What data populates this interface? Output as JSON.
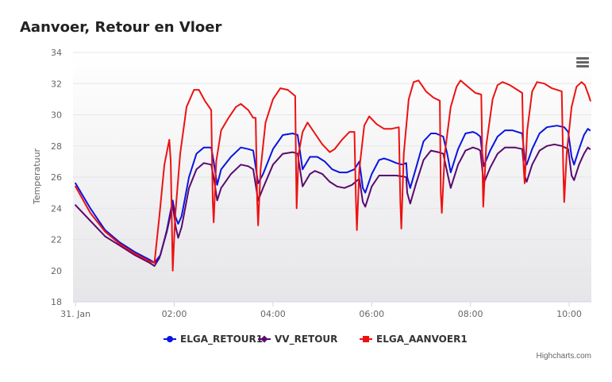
{
  "chart_data": {
    "type": "line",
    "title": "Aanvoer, Retour en Vloer",
    "ylabel": "Temperatuur",
    "xlabel": "",
    "ylim": [
      18,
      34
    ],
    "yticks": [
      18,
      20,
      22,
      24,
      26,
      28,
      30,
      32,
      34
    ],
    "xlim": [
      -0.05,
      10.45
    ],
    "xticks": [
      {
        "value": 0,
        "label": "31. Jan"
      },
      {
        "value": 2,
        "label": "02:00"
      },
      {
        "value": 4,
        "label": "04:00"
      },
      {
        "value": 6,
        "label": "06:00"
      },
      {
        "value": 8,
        "label": "08:00"
      },
      {
        "value": 10,
        "label": "10:00"
      }
    ],
    "grid": true,
    "legend_position": "bottom-center",
    "series": [
      {
        "name": "ELGA_RETOUR1",
        "color": "#0a14e0",
        "marker": "circle",
        "points": [
          [
            0,
            25.6
          ],
          [
            0.3,
            24.0
          ],
          [
            0.6,
            22.6
          ],
          [
            0.9,
            21.8
          ],
          [
            1.2,
            21.2
          ],
          [
            1.5,
            20.7
          ],
          [
            1.6,
            20.5
          ],
          [
            1.72,
            21.0
          ],
          [
            1.85,
            22.6
          ],
          [
            1.97,
            24.5
          ],
          [
            2.03,
            23.4
          ],
          [
            2.08,
            23.0
          ],
          [
            2.15,
            23.5
          ],
          [
            2.3,
            26.0
          ],
          [
            2.45,
            27.5
          ],
          [
            2.6,
            27.9
          ],
          [
            2.75,
            27.9
          ],
          [
            2.8,
            27.0
          ],
          [
            2.87,
            25.5
          ],
          [
            2.95,
            26.5
          ],
          [
            3.15,
            27.3
          ],
          [
            3.35,
            27.9
          ],
          [
            3.5,
            27.8
          ],
          [
            3.6,
            27.7
          ],
          [
            3.7,
            25.6
          ],
          [
            3.8,
            26.2
          ],
          [
            4.0,
            27.8
          ],
          [
            4.2,
            28.7
          ],
          [
            4.4,
            28.8
          ],
          [
            4.5,
            28.7
          ],
          [
            4.6,
            26.5
          ],
          [
            4.75,
            27.3
          ],
          [
            4.9,
            27.3
          ],
          [
            5.05,
            27.0
          ],
          [
            5.2,
            26.5
          ],
          [
            5.35,
            26.3
          ],
          [
            5.5,
            26.3
          ],
          [
            5.65,
            26.5
          ],
          [
            5.75,
            27.0
          ],
          [
            5.82,
            25.3
          ],
          [
            5.87,
            25.0
          ],
          [
            6.0,
            26.2
          ],
          [
            6.15,
            27.1
          ],
          [
            6.25,
            27.2
          ],
          [
            6.35,
            27.1
          ],
          [
            6.5,
            26.9
          ],
          [
            6.62,
            26.8
          ],
          [
            6.7,
            26.9
          ],
          [
            6.72,
            26.0
          ],
          [
            6.78,
            25.3
          ],
          [
            6.9,
            26.6
          ],
          [
            7.05,
            28.3
          ],
          [
            7.2,
            28.8
          ],
          [
            7.3,
            28.8
          ],
          [
            7.45,
            28.6
          ],
          [
            7.53,
            27.5
          ],
          [
            7.6,
            26.3
          ],
          [
            7.75,
            27.8
          ],
          [
            7.9,
            28.8
          ],
          [
            8.05,
            28.9
          ],
          [
            8.12,
            28.8
          ],
          [
            8.2,
            28.6
          ],
          [
            8.27,
            26.7
          ],
          [
            8.4,
            27.7
          ],
          [
            8.55,
            28.6
          ],
          [
            8.7,
            29.0
          ],
          [
            8.85,
            29.0
          ],
          [
            8.95,
            28.9
          ],
          [
            9.05,
            28.8
          ],
          [
            9.1,
            27.2
          ],
          [
            9.14,
            26.8
          ],
          [
            9.25,
            27.8
          ],
          [
            9.4,
            28.8
          ],
          [
            9.55,
            29.2
          ],
          [
            9.75,
            29.3
          ],
          [
            9.9,
            29.2
          ],
          [
            9.98,
            28.9
          ],
          [
            10.05,
            27.3
          ],
          [
            10.1,
            26.8
          ],
          [
            10.2,
            27.8
          ],
          [
            10.3,
            28.7
          ],
          [
            10.38,
            29.1
          ],
          [
            10.42,
            29.0
          ]
        ]
      },
      {
        "name": "VV_RETOUR",
        "color": "#5a0a6e",
        "marker": "diamond",
        "points": [
          [
            0,
            24.2
          ],
          [
            0.3,
            23.2
          ],
          [
            0.6,
            22.2
          ],
          [
            0.9,
            21.6
          ],
          [
            1.2,
            21.0
          ],
          [
            1.5,
            20.5
          ],
          [
            1.6,
            20.3
          ],
          [
            1.7,
            20.8
          ],
          [
            1.85,
            22.5
          ],
          [
            1.97,
            24.2
          ],
          [
            2.03,
            22.8
          ],
          [
            2.08,
            22.1
          ],
          [
            2.15,
            22.8
          ],
          [
            2.3,
            25.3
          ],
          [
            2.45,
            26.5
          ],
          [
            2.6,
            26.9
          ],
          [
            2.75,
            26.8
          ],
          [
            2.8,
            26.0
          ],
          [
            2.87,
            24.5
          ],
          [
            2.95,
            25.3
          ],
          [
            3.15,
            26.2
          ],
          [
            3.35,
            26.8
          ],
          [
            3.5,
            26.7
          ],
          [
            3.6,
            26.5
          ],
          [
            3.7,
            24.5
          ],
          [
            3.8,
            25.3
          ],
          [
            4.0,
            26.8
          ],
          [
            4.2,
            27.5
          ],
          [
            4.4,
            27.6
          ],
          [
            4.5,
            27.5
          ],
          [
            4.6,
            25.4
          ],
          [
            4.75,
            26.2
          ],
          [
            4.85,
            26.4
          ],
          [
            5.0,
            26.2
          ],
          [
            5.15,
            25.7
          ],
          [
            5.3,
            25.4
          ],
          [
            5.45,
            25.3
          ],
          [
            5.6,
            25.5
          ],
          [
            5.75,
            25.9
          ],
          [
            5.82,
            24.4
          ],
          [
            5.87,
            24.1
          ],
          [
            6.0,
            25.4
          ],
          [
            6.15,
            26.1
          ],
          [
            6.3,
            26.1
          ],
          [
            6.5,
            26.1
          ],
          [
            6.7,
            26.0
          ],
          [
            6.72,
            25.0
          ],
          [
            6.78,
            24.3
          ],
          [
            6.9,
            25.6
          ],
          [
            7.05,
            27.1
          ],
          [
            7.2,
            27.7
          ],
          [
            7.35,
            27.6
          ],
          [
            7.45,
            27.5
          ],
          [
            7.53,
            26.3
          ],
          [
            7.6,
            25.3
          ],
          [
            7.75,
            26.8
          ],
          [
            7.9,
            27.7
          ],
          [
            8.05,
            27.9
          ],
          [
            8.15,
            27.8
          ],
          [
            8.2,
            27.7
          ],
          [
            8.27,
            25.6
          ],
          [
            8.4,
            26.6
          ],
          [
            8.55,
            27.5
          ],
          [
            8.7,
            27.9
          ],
          [
            8.9,
            27.9
          ],
          [
            9.05,
            27.8
          ],
          [
            9.1,
            26.1
          ],
          [
            9.14,
            25.7
          ],
          [
            9.25,
            26.8
          ],
          [
            9.4,
            27.7
          ],
          [
            9.55,
            28.0
          ],
          [
            9.7,
            28.1
          ],
          [
            9.85,
            28.0
          ],
          [
            9.98,
            27.8
          ],
          [
            10.05,
            26.1
          ],
          [
            10.1,
            25.8
          ],
          [
            10.2,
            26.8
          ],
          [
            10.3,
            27.5
          ],
          [
            10.38,
            27.9
          ],
          [
            10.42,
            27.8
          ]
        ]
      },
      {
        "name": "ELGA_AANVOER1",
        "color": "#ee1111",
        "marker": "square",
        "points": [
          [
            0,
            25.4
          ],
          [
            0.3,
            23.7
          ],
          [
            0.6,
            22.5
          ],
          [
            0.9,
            21.7
          ],
          [
            1.2,
            21.1
          ],
          [
            1.5,
            20.6
          ],
          [
            1.6,
            20.5
          ],
          [
            1.7,
            23.5
          ],
          [
            1.8,
            26.8
          ],
          [
            1.9,
            28.4
          ],
          [
            1.93,
            27.0
          ],
          [
            1.97,
            20.0
          ],
          [
            2.02,
            23.5
          ],
          [
            2.12,
            27.5
          ],
          [
            2.25,
            30.5
          ],
          [
            2.4,
            31.6
          ],
          [
            2.5,
            31.6
          ],
          [
            2.62,
            30.9
          ],
          [
            2.75,
            30.3
          ],
          [
            2.78,
            24.5
          ],
          [
            2.8,
            23.1
          ],
          [
            2.85,
            27.0
          ],
          [
            2.95,
            29.0
          ],
          [
            3.1,
            29.8
          ],
          [
            3.25,
            30.5
          ],
          [
            3.35,
            30.7
          ],
          [
            3.5,
            30.3
          ],
          [
            3.6,
            29.8
          ],
          [
            3.65,
            29.8
          ],
          [
            3.68,
            24.5
          ],
          [
            3.7,
            22.9
          ],
          [
            3.75,
            26.5
          ],
          [
            3.85,
            29.5
          ],
          [
            4.0,
            31.0
          ],
          [
            4.15,
            31.7
          ],
          [
            4.3,
            31.6
          ],
          [
            4.45,
            31.2
          ],
          [
            4.47,
            26.0
          ],
          [
            4.48,
            24.0
          ],
          [
            4.52,
            27.5
          ],
          [
            4.6,
            28.9
          ],
          [
            4.7,
            29.5
          ],
          [
            4.85,
            28.8
          ],
          [
            5.0,
            28.1
          ],
          [
            5.15,
            27.6
          ],
          [
            5.25,
            27.8
          ],
          [
            5.4,
            28.4
          ],
          [
            5.55,
            28.9
          ],
          [
            5.65,
            28.9
          ],
          [
            5.68,
            24.5
          ],
          [
            5.7,
            22.6
          ],
          [
            5.75,
            26.5
          ],
          [
            5.85,
            29.3
          ],
          [
            5.95,
            29.9
          ],
          [
            6.1,
            29.4
          ],
          [
            6.25,
            29.1
          ],
          [
            6.4,
            29.1
          ],
          [
            6.55,
            29.2
          ],
          [
            6.58,
            24.5
          ],
          [
            6.6,
            22.7
          ],
          [
            6.65,
            27.5
          ],
          [
            6.75,
            31.0
          ],
          [
            6.85,
            32.1
          ],
          [
            6.95,
            32.2
          ],
          [
            7.1,
            31.5
          ],
          [
            7.25,
            31.1
          ],
          [
            7.38,
            30.9
          ],
          [
            7.4,
            25.0
          ],
          [
            7.42,
            23.7
          ],
          [
            7.48,
            27.5
          ],
          [
            7.6,
            30.5
          ],
          [
            7.72,
            31.8
          ],
          [
            7.8,
            32.2
          ],
          [
            7.95,
            31.8
          ],
          [
            8.1,
            31.4
          ],
          [
            8.22,
            31.3
          ],
          [
            8.25,
            25.5
          ],
          [
            8.26,
            24.1
          ],
          [
            8.32,
            28.0
          ],
          [
            8.45,
            31.0
          ],
          [
            8.55,
            31.9
          ],
          [
            8.65,
            32.1
          ],
          [
            8.8,
            31.9
          ],
          [
            8.95,
            31.6
          ],
          [
            9.05,
            31.4
          ],
          [
            9.08,
            26.5
          ],
          [
            9.1,
            25.6
          ],
          [
            9.15,
            29.0
          ],
          [
            9.25,
            31.5
          ],
          [
            9.35,
            32.1
          ],
          [
            9.5,
            32.0
          ],
          [
            9.65,
            31.7
          ],
          [
            9.85,
            31.5
          ],
          [
            9.88,
            26.5
          ],
          [
            9.9,
            24.4
          ],
          [
            9.95,
            27.5
          ],
          [
            10.05,
            30.5
          ],
          [
            10.15,
            31.8
          ],
          [
            10.25,
            32.1
          ],
          [
            10.32,
            31.9
          ],
          [
            10.4,
            31.2
          ],
          [
            10.43,
            30.9
          ]
        ]
      }
    ]
  },
  "credits": "Highcharts.com",
  "menu": {
    "icon": "hamburger-menu-icon"
  }
}
